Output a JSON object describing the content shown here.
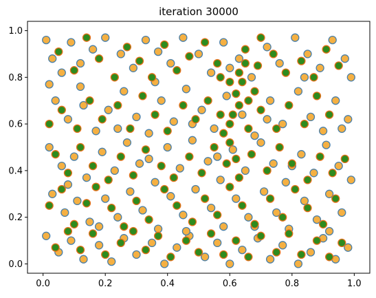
{
  "chart_data": {
    "type": "scatter",
    "title": "iteration 30000",
    "xlabel": "",
    "ylabel": "",
    "xlim": [
      -0.05,
      1.05
    ],
    "ylim": [
      -0.04,
      1.04
    ],
    "xticks": [
      "0.0",
      "0.2",
      "0.4",
      "0.6",
      "0.8",
      "1.0"
    ],
    "yticks": [
      "0.0",
      "0.2",
      "0.4",
      "0.6",
      "0.8",
      "1.0"
    ],
    "xtick_values": [
      0.0,
      0.2,
      0.4,
      0.6,
      0.8,
      1.0
    ],
    "ytick_values": [
      0.0,
      0.2,
      0.4,
      0.6,
      0.8,
      1.0
    ],
    "grid": false,
    "legend": "none",
    "colors": {
      "orange_fill": "#f5b042",
      "blue_edge": "#4a7fa8",
      "green_fill": "#2e8b1e",
      "orange_edge": "#e8701a"
    },
    "series": [
      {
        "style": "orange-fill-blue-edge",
        "points": [
          [
            0.01,
            0.96
          ],
          [
            0.03,
            0.88
          ],
          [
            0.02,
            0.77
          ],
          [
            0.06,
            0.82
          ],
          [
            0.09,
            0.95
          ],
          [
            0.12,
            0.86
          ],
          [
            0.16,
            0.92
          ],
          [
            0.2,
            0.97
          ],
          [
            0.25,
            0.9
          ],
          [
            0.29,
            0.84
          ],
          [
            0.33,
            0.96
          ],
          [
            0.37,
            0.91
          ],
          [
            0.41,
            0.86
          ],
          [
            0.45,
            0.97
          ],
          [
            0.5,
            0.9
          ],
          [
            0.54,
            0.82
          ],
          [
            0.58,
            0.95
          ],
          [
            0.63,
            0.88
          ],
          [
            0.67,
            0.8
          ],
          [
            0.72,
            0.93
          ],
          [
            0.76,
            0.86
          ],
          [
            0.81,
            0.97
          ],
          [
            0.85,
            0.9
          ],
          [
            0.89,
            0.84
          ],
          [
            0.93,
            0.96
          ],
          [
            0.97,
            0.88
          ],
          [
            0.99,
            0.8
          ],
          [
            0.04,
            0.7
          ],
          [
            0.08,
            0.62
          ],
          [
            0.13,
            0.68
          ],
          [
            0.17,
            0.57
          ],
          [
            0.21,
            0.66
          ],
          [
            0.26,
            0.74
          ],
          [
            0.3,
            0.63
          ],
          [
            0.34,
            0.56
          ],
          [
            0.38,
            0.7
          ],
          [
            0.42,
            0.61
          ],
          [
            0.46,
            0.75
          ],
          [
            0.51,
            0.66
          ],
          [
            0.55,
            0.58
          ],
          [
            0.59,
            0.72
          ],
          [
            0.64,
            0.64
          ],
          [
            0.68,
            0.55
          ],
          [
            0.73,
            0.7
          ],
          [
            0.77,
            0.6
          ],
          [
            0.82,
            0.74
          ],
          [
            0.86,
            0.63
          ],
          [
            0.9,
            0.57
          ],
          [
            0.94,
            0.7
          ],
          [
            0.98,
            0.62
          ],
          [
            0.02,
            0.5
          ],
          [
            0.06,
            0.42
          ],
          [
            0.1,
            0.46
          ],
          [
            0.14,
            0.37
          ],
          [
            0.19,
            0.48
          ],
          [
            0.23,
            0.4
          ],
          [
            0.27,
            0.52
          ],
          [
            0.31,
            0.43
          ],
          [
            0.36,
            0.35
          ],
          [
            0.4,
            0.5
          ],
          [
            0.44,
            0.41
          ],
          [
            0.48,
            0.53
          ],
          [
            0.53,
            0.44
          ],
          [
            0.57,
            0.36
          ],
          [
            0.61,
            0.49
          ],
          [
            0.65,
            0.4
          ],
          [
            0.7,
            0.52
          ],
          [
            0.74,
            0.43
          ],
          [
            0.78,
            0.35
          ],
          [
            0.83,
            0.47
          ],
          [
            0.87,
            0.39
          ],
          [
            0.91,
            0.51
          ],
          [
            0.95,
            0.42
          ],
          [
            0.99,
            0.36
          ],
          [
            0.03,
            0.3
          ],
          [
            0.07,
            0.22
          ],
          [
            0.11,
            0.27
          ],
          [
            0.15,
            0.18
          ],
          [
            0.2,
            0.28
          ],
          [
            0.24,
            0.2
          ],
          [
            0.28,
            0.31
          ],
          [
            0.32,
            0.23
          ],
          [
            0.37,
            0.15
          ],
          [
            0.41,
            0.29
          ],
          [
            0.45,
            0.21
          ],
          [
            0.49,
            0.32
          ],
          [
            0.54,
            0.24
          ],
          [
            0.58,
            0.16
          ],
          [
            0.62,
            0.28
          ],
          [
            0.66,
            0.2
          ],
          [
            0.71,
            0.31
          ],
          [
            0.75,
            0.22
          ],
          [
            0.79,
            0.15
          ],
          [
            0.84,
            0.27
          ],
          [
            0.88,
            0.19
          ],
          [
            0.92,
            0.3
          ],
          [
            0.96,
            0.22
          ],
          [
            0.01,
            0.12
          ],
          [
            0.05,
            0.05
          ],
          [
            0.09,
            0.1
          ],
          [
            0.13,
            0.02
          ],
          [
            0.18,
            0.08
          ],
          [
            0.22,
            0.01
          ],
          [
            0.26,
            0.11
          ],
          [
            0.3,
            0.04
          ],
          [
            0.35,
            0.09
          ],
          [
            0.39,
            0.0
          ],
          [
            0.43,
            0.07
          ],
          [
            0.47,
            0.12
          ],
          [
            0.52,
            0.03
          ],
          [
            0.56,
            0.09
          ],
          [
            0.6,
            0.0
          ],
          [
            0.64,
            0.06
          ],
          [
            0.69,
            0.11
          ],
          [
            0.73,
            0.02
          ],
          [
            0.77,
            0.08
          ],
          [
            0.82,
            0.0
          ],
          [
            0.86,
            0.05
          ],
          [
            0.9,
            0.11
          ],
          [
            0.94,
            0.02
          ],
          [
            0.98,
            0.07
          ],
          [
            0.12,
            0.76
          ],
          [
            0.24,
            0.58
          ],
          [
            0.36,
            0.78
          ],
          [
            0.48,
            0.6
          ],
          [
            0.6,
            0.84
          ],
          [
            0.72,
            0.62
          ],
          [
            0.84,
            0.8
          ],
          [
            0.96,
            0.58
          ],
          [
            0.08,
            0.34
          ],
          [
            0.18,
            0.16
          ],
          [
            0.34,
            0.45
          ],
          [
            0.46,
            0.14
          ],
          [
            0.56,
            0.46
          ],
          [
            0.68,
            0.16
          ],
          [
            0.8,
            0.42
          ],
          [
            0.92,
            0.14
          ]
        ]
      },
      {
        "style": "green-fill-orange-edge",
        "points": [
          [
            0.05,
            0.91
          ],
          [
            0.1,
            0.83
          ],
          [
            0.14,
            0.97
          ],
          [
            0.18,
            0.88
          ],
          [
            0.23,
            0.8
          ],
          [
            0.27,
            0.93
          ],
          [
            0.31,
            0.87
          ],
          [
            0.35,
            0.8
          ],
          [
            0.39,
            0.94
          ],
          [
            0.43,
            0.83
          ],
          [
            0.47,
            0.89
          ],
          [
            0.52,
            0.95
          ],
          [
            0.56,
            0.86
          ],
          [
            0.6,
            0.78
          ],
          [
            0.62,
            0.73
          ],
          [
            0.65,
            0.92
          ],
          [
            0.69,
            0.85
          ],
          [
            0.7,
            0.97
          ],
          [
            0.74,
            0.9
          ],
          [
            0.78,
            0.82
          ],
          [
            0.83,
            0.87
          ],
          [
            0.87,
            0.8
          ],
          [
            0.91,
            0.92
          ],
          [
            0.95,
            0.85
          ],
          [
            0.02,
            0.6
          ],
          [
            0.06,
            0.66
          ],
          [
            0.11,
            0.58
          ],
          [
            0.15,
            0.7
          ],
          [
            0.19,
            0.62
          ],
          [
            0.24,
            0.68
          ],
          [
            0.28,
            0.58
          ],
          [
            0.32,
            0.72
          ],
          [
            0.36,
            0.64
          ],
          [
            0.4,
            0.57
          ],
          [
            0.45,
            0.68
          ],
          [
            0.49,
            0.62
          ],
          [
            0.53,
            0.7
          ],
          [
            0.57,
            0.64
          ],
          [
            0.6,
            0.6
          ],
          [
            0.63,
            0.68
          ],
          [
            0.66,
            0.58
          ],
          [
            0.7,
            0.66
          ],
          [
            0.75,
            0.58
          ],
          [
            0.79,
            0.68
          ],
          [
            0.84,
            0.6
          ],
          [
            0.88,
            0.72
          ],
          [
            0.92,
            0.64
          ],
          [
            0.04,
            0.47
          ],
          [
            0.08,
            0.39
          ],
          [
            0.12,
            0.5
          ],
          [
            0.16,
            0.42
          ],
          [
            0.21,
            0.36
          ],
          [
            0.25,
            0.46
          ],
          [
            0.29,
            0.38
          ],
          [
            0.33,
            0.49
          ],
          [
            0.38,
            0.42
          ],
          [
            0.42,
            0.37
          ],
          [
            0.47,
            0.46
          ],
          [
            0.51,
            0.39
          ],
          [
            0.55,
            0.5
          ],
          [
            0.59,
            0.43
          ],
          [
            0.63,
            0.37
          ],
          [
            0.67,
            0.47
          ],
          [
            0.72,
            0.4
          ],
          [
            0.76,
            0.5
          ],
          [
            0.8,
            0.43
          ],
          [
            0.85,
            0.36
          ],
          [
            0.89,
            0.46
          ],
          [
            0.93,
            0.39
          ],
          [
            0.97,
            0.45
          ],
          [
            0.02,
            0.25
          ],
          [
            0.06,
            0.32
          ],
          [
            0.1,
            0.17
          ],
          [
            0.14,
            0.26
          ],
          [
            0.17,
            0.33
          ],
          [
            0.22,
            0.24
          ],
          [
            0.26,
            0.16
          ],
          [
            0.3,
            0.27
          ],
          [
            0.34,
            0.19
          ],
          [
            0.39,
            0.32
          ],
          [
            0.43,
            0.25
          ],
          [
            0.48,
            0.18
          ],
          [
            0.52,
            0.28
          ],
          [
            0.56,
            0.21
          ],
          [
            0.6,
            0.33
          ],
          [
            0.64,
            0.25
          ],
          [
            0.68,
            0.17
          ],
          [
            0.73,
            0.28
          ],
          [
            0.77,
            0.2
          ],
          [
            0.81,
            0.32
          ],
          [
            0.85,
            0.24
          ],
          [
            0.9,
            0.17
          ],
          [
            0.94,
            0.28
          ],
          [
            0.04,
            0.07
          ],
          [
            0.08,
            0.14
          ],
          [
            0.12,
            0.06
          ],
          [
            0.16,
            0.13
          ],
          [
            0.2,
            0.04
          ],
          [
            0.25,
            0.09
          ],
          [
            0.29,
            0.14
          ],
          [
            0.33,
            0.06
          ],
          [
            0.37,
            0.12
          ],
          [
            0.41,
            0.03
          ],
          [
            0.46,
            0.1
          ],
          [
            0.5,
            0.05
          ],
          [
            0.54,
            0.13
          ],
          [
            0.58,
            0.04
          ],
          [
            0.62,
            0.1
          ],
          [
            0.66,
            0.03
          ],
          [
            0.7,
            0.12
          ],
          [
            0.75,
            0.05
          ],
          [
            0.79,
            0.13
          ],
          [
            0.83,
            0.04
          ],
          [
            0.88,
            0.1
          ],
          [
            0.92,
            0.03
          ],
          [
            0.96,
            0.09
          ],
          [
            0.6,
            0.52
          ],
          [
            0.62,
            0.45
          ],
          [
            0.64,
            0.78
          ],
          [
            0.66,
            0.7
          ],
          [
            0.58,
            0.56
          ],
          [
            0.68,
            0.74
          ],
          [
            0.61,
            0.64
          ],
          [
            0.63,
            0.82
          ],
          [
            0.65,
            0.86
          ],
          [
            0.57,
            0.8
          ]
        ]
      }
    ]
  }
}
